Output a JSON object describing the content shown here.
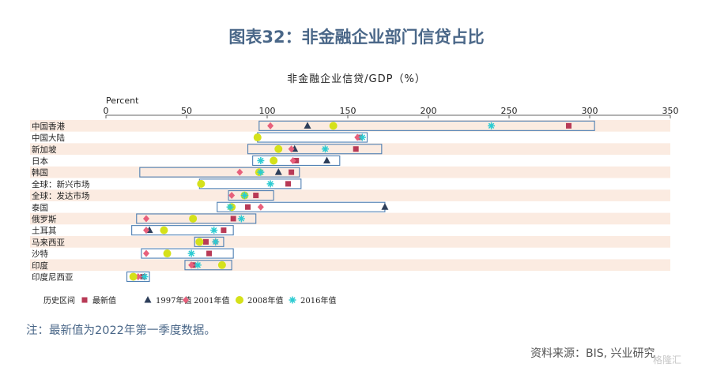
{
  "page": {
    "title": "图表32：非金融企业部门信贷占比",
    "footnote": "注：最新值为2022年第一季度数据。",
    "source": "资料来源：BIS, 兴业研究",
    "watermark": "格隆汇"
  },
  "colors": {
    "title": "#4a6788",
    "band": "#fbebe1",
    "range_box": "#4e7fb3",
    "latest": "#b83a56",
    "y1997": "#2d3e5a",
    "y2001": "#e8607c",
    "y2008": "#d5e11a",
    "y2016": "#2ccbd2"
  },
  "chart_data": {
    "type": "range-dot",
    "title": "非金融企业信贷/GDP（%）",
    "xlabel": "Percent",
    "xlim": [
      0,
      350
    ],
    "xticks": [
      0,
      50,
      100,
      150,
      200,
      250,
      300,
      350
    ],
    "categories": [
      "中国香港",
      "中国大陆",
      "新加坡",
      "日本",
      "韩国",
      "全球：新兴市场",
      "全球：发达市场",
      "泰国",
      "俄罗斯",
      "土耳其",
      "马来西亚",
      "沙特",
      "印度",
      "印度尼西亚"
    ],
    "range_name": "历史区间",
    "ranges": [
      [
        95,
        303
      ],
      [
        94,
        162
      ],
      [
        88,
        171
      ],
      [
        91,
        145
      ],
      [
        21,
        120
      ],
      [
        58,
        121
      ],
      [
        76,
        104
      ],
      [
        69,
        173
      ],
      [
        19,
        93
      ],
      [
        16,
        79
      ],
      [
        55,
        73
      ],
      [
        22,
        79
      ],
      [
        49,
        78
      ],
      [
        13,
        27
      ]
    ],
    "series": [
      {
        "name": "最新值",
        "marker": "square",
        "values": [
          287,
          157,
          155,
          118,
          115,
          113,
          93,
          88,
          79,
          73,
          62,
          64,
          54,
          23
        ]
      },
      {
        "name": "1997年值",
        "marker": "triangle",
        "values": [
          125,
          null,
          117,
          137,
          107,
          null,
          null,
          173,
          null,
          27,
          null,
          null,
          null,
          null
        ]
      },
      {
        "name": "2001年值",
        "marker": "diamond",
        "values": [
          102,
          156,
          115,
          116,
          83,
          null,
          78,
          96,
          25,
          25,
          68,
          25,
          53,
          20
        ]
      },
      {
        "name": "2008年值",
        "marker": "circle",
        "values": [
          141,
          94,
          107,
          104,
          95,
          59,
          86,
          78,
          54,
          36,
          58,
          38,
          72,
          17
        ]
      },
      {
        "name": "2016年值",
        "marker": "asterisk",
        "values": [
          239,
          159,
          136,
          96,
          96,
          102,
          86,
          77,
          84,
          67,
          68,
          53,
          57,
          24
        ]
      }
    ]
  }
}
